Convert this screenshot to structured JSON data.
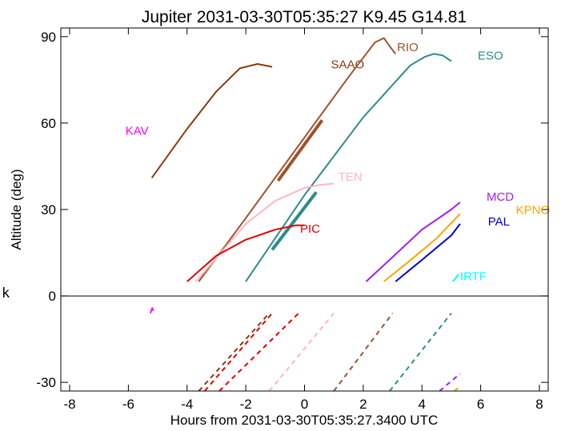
{
  "chart_data": {
    "type": "line",
    "title": "Jupiter 2031-03-30T05:35:27  K9.45  G14.81",
    "xlabel": "Hours from 2031-03-30T05:35:27.3400 UTC",
    "ylabel": "Altitude (deg)",
    "xlim": [
      -8.3,
      8.3
    ],
    "ylim": [
      -33,
      93
    ],
    "xticks": [
      -8,
      -6,
      -4,
      -2,
      0,
      2,
      4,
      6,
      8
    ],
    "yticks": [
      -30,
      0,
      30,
      60,
      90
    ],
    "xtick_labels": [
      "-8",
      "-6",
      "-4",
      "-2",
      "0",
      "2",
      "4",
      "6",
      "8"
    ],
    "ytick_labels": [
      "-30",
      "0",
      "30",
      "60",
      "90"
    ],
    "stray_text": "k",
    "series": [
      {
        "name": "KAV",
        "color": "#ff00ff",
        "label_at": [
          -6.1,
          56
        ],
        "solid": [
          [
            -5.2,
            -4.0
          ],
          [
            -5.15,
            -5.2
          ]
        ],
        "thick": [],
        "dashed": [
          [
            -5.25,
            -6.0
          ],
          [
            -5.2,
            -4.6
          ]
        ]
      },
      {
        "name": "SAAO",
        "color": "#8b3a10",
        "label_at": [
          0.9,
          79
        ],
        "solid": [
          [
            -5.2,
            41
          ],
          [
            -4,
            58
          ],
          [
            -3,
            71
          ],
          [
            -2.2,
            79
          ],
          [
            -1.6,
            80.5
          ],
          [
            -1.1,
            79.5
          ]
        ],
        "thick": [],
        "dashed": [
          [
            -3.6,
            -33
          ],
          [
            -1.2,
            -6
          ]
        ]
      },
      {
        "name": "RIO",
        "color": "#a0522d",
        "label_at": [
          3.15,
          85
        ],
        "solid": [
          [
            -3.6,
            5
          ],
          [
            -2,
            27
          ],
          [
            0,
            55
          ],
          [
            1.5,
            76
          ],
          [
            2.4,
            88
          ],
          [
            2.7,
            89.5
          ],
          [
            2.95,
            86
          ],
          [
            3.1,
            84
          ]
        ],
        "thick": [
          [
            -0.9,
            40
          ],
          [
            0.6,
            61
          ]
        ],
        "dashed": [
          [
            1.0,
            -33
          ],
          [
            3.0,
            -6
          ]
        ]
      },
      {
        "name": "ESO",
        "color": "#2e8b8b",
        "label_at": [
          5.9,
          82
        ],
        "solid": [
          [
            -2,
            5
          ],
          [
            0,
            35
          ],
          [
            2,
            62
          ],
          [
            3.6,
            80
          ],
          [
            4.1,
            83
          ],
          [
            4.4,
            84
          ],
          [
            4.7,
            83.5
          ],
          [
            5.0,
            81.5
          ]
        ],
        "thick": [
          [
            -1.1,
            16
          ],
          [
            0.4,
            36
          ]
        ],
        "dashed": [
          [
            2.9,
            -33
          ],
          [
            5.0,
            -6
          ]
        ]
      },
      {
        "name": "TEN",
        "color": "#ffb6c1",
        "label_at": [
          1.15,
          40
        ],
        "solid": [
          [
            -3.7,
            5
          ],
          [
            -2,
            25
          ],
          [
            -1,
            33
          ],
          [
            0,
            37.5
          ],
          [
            0.5,
            38.5
          ],
          [
            1.0,
            39
          ]
        ],
        "thick": [],
        "dashed": [
          [
            -1.2,
            -33
          ],
          [
            1.0,
            -6
          ]
        ]
      },
      {
        "name": "PIC",
        "color": "#e00000",
        "label_at": [
          -0.15,
          22
        ],
        "solid": [
          [
            -4,
            5
          ],
          [
            -3,
            14
          ],
          [
            -2,
            19.5
          ],
          [
            -1,
            23
          ],
          [
            -0.3,
            24.5
          ],
          [
            0,
            24.5
          ]
        ],
        "thick": [],
        "dashed": [
          [
            -3.4,
            -33
          ],
          [
            -1.1,
            -6
          ],
          [
            -2.9,
            -33
          ],
          [
            -0.2,
            -6
          ]
        ]
      },
      {
        "name": "MCD",
        "color": "#a020f0",
        "label_at": [
          6.2,
          33
        ],
        "solid": [
          [
            2.1,
            5
          ],
          [
            3,
            13.5
          ],
          [
            4,
            23
          ],
          [
            5,
            30
          ],
          [
            5.3,
            32.5
          ]
        ],
        "thick": [],
        "dashed": [
          [
            4.6,
            -33
          ],
          [
            5.3,
            -27
          ]
        ]
      },
      {
        "name": "KPNO",
        "color": "#ffa500",
        "label_at": [
          7.2,
          28.5
        ],
        "solid": [
          [
            2.7,
            5
          ],
          [
            3.5,
            11.5
          ],
          [
            4.5,
            20
          ],
          [
            5.3,
            28.5
          ]
        ],
        "thick": [],
        "dashed": [
          [
            5.1,
            -33
          ],
          [
            5.3,
            -31.5
          ]
        ]
      },
      {
        "name": "PAL",
        "color": "#0000cd",
        "label_at": [
          6.25,
          24.5
        ],
        "solid": [
          [
            3.1,
            5
          ],
          [
            4,
            12.5
          ],
          [
            5,
            21
          ],
          [
            5.3,
            25
          ]
        ],
        "thick": [],
        "dashed": []
      },
      {
        "name": "IRTF",
        "color": "#00ffff",
        "label_at": [
          5.3,
          5.5
        ],
        "solid": [
          [
            5.05,
            5
          ],
          [
            5.25,
            7.5
          ]
        ],
        "thick": [],
        "dashed": []
      }
    ]
  }
}
